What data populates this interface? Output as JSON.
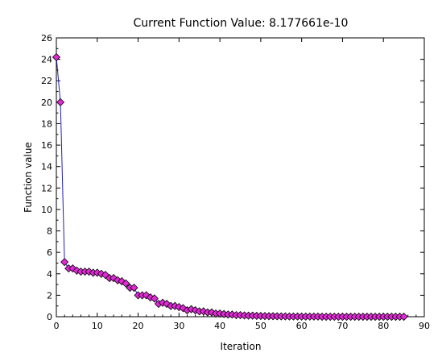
{
  "chart_data": {
    "type": "line",
    "title": "Current Function Value: 8.177661e-10",
    "xlabel": "Iteration",
    "ylabel": "Function value",
    "xlim": [
      0,
      90
    ],
    "ylim": [
      0,
      26
    ],
    "xticks": [
      0,
      10,
      20,
      30,
      40,
      50,
      60,
      70,
      80,
      90
    ],
    "yticks": [
      0,
      2,
      4,
      6,
      8,
      10,
      12,
      14,
      16,
      18,
      20,
      22,
      24,
      26
    ],
    "grid": false,
    "legend": "none",
    "series": [
      {
        "line_color": "#1f1fb4",
        "marker": "diamond",
        "marker_color": "#e02ad6",
        "x": [
          0,
          1,
          2,
          3,
          4,
          5,
          6,
          7,
          8,
          9,
          10,
          11,
          12,
          13,
          14,
          15,
          16,
          17,
          18,
          19,
          20,
          21,
          22,
          23,
          24,
          25,
          26,
          27,
          28,
          29,
          30,
          31,
          32,
          33,
          34,
          35,
          36,
          37,
          38,
          39,
          40,
          41,
          42,
          43,
          44,
          45,
          46,
          47,
          48,
          49,
          50,
          51,
          52,
          53,
          54,
          55,
          56,
          57,
          58,
          59,
          60,
          61,
          62,
          63,
          64,
          65,
          66,
          67,
          68,
          69,
          70,
          71,
          72,
          73,
          74,
          75,
          76,
          77,
          78,
          79,
          80,
          81,
          82,
          83,
          84,
          85
        ],
        "y": [
          24.2,
          20.0,
          5.1,
          4.5,
          4.5,
          4.3,
          4.2,
          4.2,
          4.2,
          4.1,
          4.1,
          4.0,
          3.9,
          3.6,
          3.6,
          3.4,
          3.3,
          3.1,
          2.7,
          2.7,
          2.0,
          2.0,
          2.0,
          1.8,
          1.7,
          1.2,
          1.3,
          1.2,
          1.0,
          1.0,
          0.9,
          0.8,
          0.6,
          0.7,
          0.6,
          0.5,
          0.5,
          0.4,
          0.4,
          0.3,
          0.3,
          0.25,
          0.2,
          0.2,
          0.15,
          0.15,
          0.12,
          0.1,
          0.1,
          0.08,
          0.07,
          0.06,
          0.05,
          0.05,
          0.04,
          0.03,
          0.03,
          0.02,
          0.02,
          0.02,
          0.01,
          0.01,
          0.01,
          0.01,
          0.01,
          0.0,
          0.0,
          0.0,
          0.0,
          0.0,
          0.0,
          0.0,
          0.0,
          0.0,
          0.0,
          0.0,
          0.0,
          0.0,
          0.0,
          0.0,
          0.0,
          0.0,
          0.0,
          0.0,
          0.0,
          0.0
        ]
      }
    ]
  }
}
